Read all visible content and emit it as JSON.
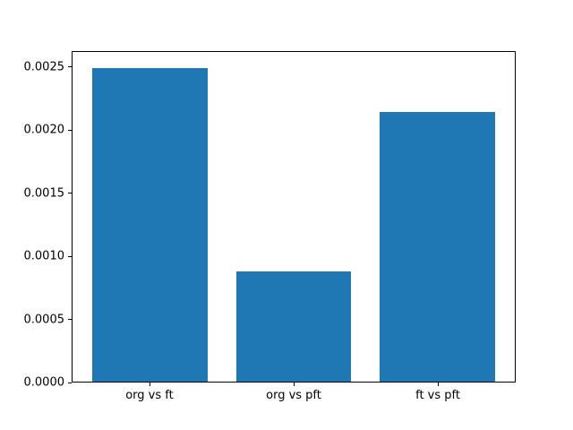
{
  "chart_data": {
    "type": "bar",
    "title": "",
    "xlabel": "",
    "ylabel": "",
    "categories": [
      "org vs ft",
      "org vs pft",
      "ft vs pft"
    ],
    "values": [
      0.0025,
      0.00088,
      0.00215
    ],
    "bar_color": "#1f77b4",
    "bar_width_units": 0.8,
    "xlim": [
      -0.54,
      2.54
    ],
    "ylim": [
      0,
      0.002625
    ],
    "yticks": [
      0,
      0.0005,
      0.001,
      0.0015,
      0.002,
      0.0025
    ],
    "ytick_labels": [
      "0.0000",
      "0.0005",
      "0.0010",
      "0.0015",
      "0.0020",
      "0.0025"
    ],
    "grid": false,
    "legend": null,
    "spine_color": "#000000",
    "background_color": "#ffffff"
  }
}
